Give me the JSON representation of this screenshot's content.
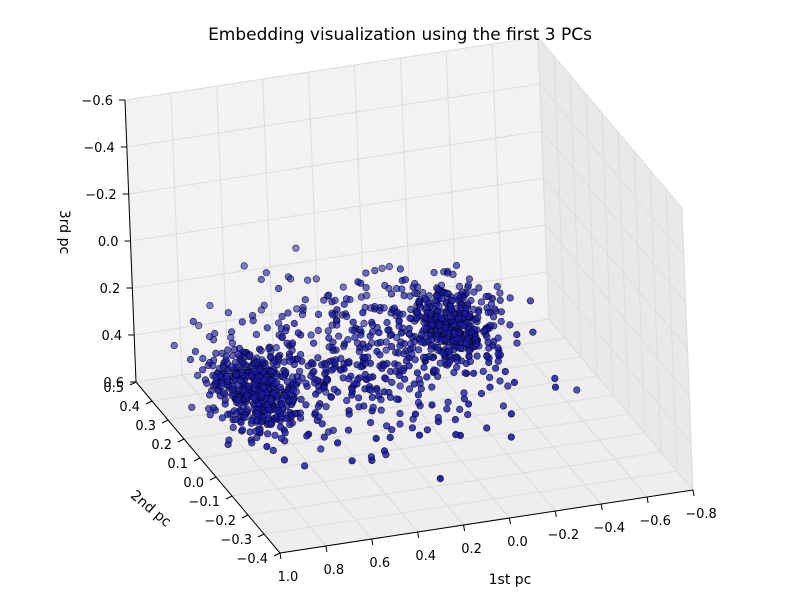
{
  "chart_data": {
    "type": "scatter",
    "projection": "3d",
    "title": "Embedding visualization using the first 3 PCs",
    "xlabel": "1st pc",
    "ylabel": "2nd pc",
    "zlabel": "3rd pc",
    "xlim": [
      1.0,
      -0.8
    ],
    "ylim": [
      -0.4,
      0.5
    ],
    "zlim": [
      0.6,
      -0.6
    ],
    "x_ticks": [
      "1.0",
      "0.8",
      "0.6",
      "0.4",
      "0.2",
      "0.0",
      "−0.2",
      "−0.4",
      "−0.6",
      "−0.8"
    ],
    "y_ticks": [
      "0.5",
      "0.4",
      "0.3",
      "0.2",
      "0.1",
      "0.0",
      "−0.1",
      "−0.2",
      "−0.3",
      "−0.4"
    ],
    "z_ticks": [
      "−0.6",
      "−0.4",
      "−0.2",
      "0.0",
      "0.2",
      "0.4",
      "0.6"
    ],
    "x_tick_values": [
      1.0,
      0.8,
      0.6,
      0.4,
      0.2,
      0.0,
      -0.2,
      -0.4,
      -0.6,
      -0.8
    ],
    "y_tick_values": [
      0.5,
      0.4,
      0.3,
      0.2,
      0.1,
      0.0,
      -0.1,
      -0.2,
      -0.3,
      -0.4
    ],
    "z_tick_values": [
      -0.6,
      -0.4,
      -0.2,
      0.0,
      0.2,
      0.4,
      0.6
    ],
    "clusters": [
      {
        "center": [
          0.78,
          0.05,
          0.3
        ],
        "spread": [
          0.08,
          0.08,
          0.06
        ],
        "count": 420
      },
      {
        "center": [
          -0.1,
          0.1,
          0.18
        ],
        "spread": [
          0.09,
          0.07,
          0.06
        ],
        "count": 380
      },
      {
        "center": [
          0.35,
          0.0,
          0.2
        ],
        "spread": [
          0.3,
          0.15,
          0.12
        ],
        "count": 500
      }
    ],
    "marker_color": "#1a1ab0",
    "marker_edge": "#000000",
    "pane_color": "#f2f2f2",
    "grid": true
  }
}
